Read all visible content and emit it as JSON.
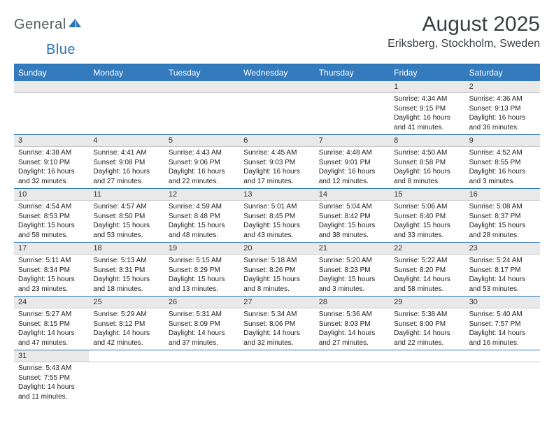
{
  "logo": {
    "text1": "General",
    "text2": "Blue"
  },
  "title": "August 2025",
  "location": "Eriksberg, Stockholm, Sweden",
  "day_names": [
    "Sunday",
    "Monday",
    "Tuesday",
    "Wednesday",
    "Thursday",
    "Friday",
    "Saturday"
  ],
  "colors": {
    "header_bg": "#347bbd",
    "header_border": "#2c76b8",
    "daynum_bg": "#e9e9e9",
    "text_dark": "#3a3f44"
  },
  "weeks": [
    [
      null,
      null,
      null,
      null,
      null,
      {
        "n": "1",
        "sr": "4:34 AM",
        "ss": "9:15 PM",
        "dl": "16 hours and 41 minutes."
      },
      {
        "n": "2",
        "sr": "4:36 AM",
        "ss": "9:13 PM",
        "dl": "16 hours and 36 minutes."
      }
    ],
    [
      {
        "n": "3",
        "sr": "4:38 AM",
        "ss": "9:10 PM",
        "dl": "16 hours and 32 minutes."
      },
      {
        "n": "4",
        "sr": "4:41 AM",
        "ss": "9:08 PM",
        "dl": "16 hours and 27 minutes."
      },
      {
        "n": "5",
        "sr": "4:43 AM",
        "ss": "9:06 PM",
        "dl": "16 hours and 22 minutes."
      },
      {
        "n": "6",
        "sr": "4:45 AM",
        "ss": "9:03 PM",
        "dl": "16 hours and 17 minutes."
      },
      {
        "n": "7",
        "sr": "4:48 AM",
        "ss": "9:01 PM",
        "dl": "16 hours and 12 minutes."
      },
      {
        "n": "8",
        "sr": "4:50 AM",
        "ss": "8:58 PM",
        "dl": "16 hours and 8 minutes."
      },
      {
        "n": "9",
        "sr": "4:52 AM",
        "ss": "8:55 PM",
        "dl": "16 hours and 3 minutes."
      }
    ],
    [
      {
        "n": "10",
        "sr": "4:54 AM",
        "ss": "8:53 PM",
        "dl": "15 hours and 58 minutes."
      },
      {
        "n": "11",
        "sr": "4:57 AM",
        "ss": "8:50 PM",
        "dl": "15 hours and 53 minutes."
      },
      {
        "n": "12",
        "sr": "4:59 AM",
        "ss": "8:48 PM",
        "dl": "15 hours and 48 minutes."
      },
      {
        "n": "13",
        "sr": "5:01 AM",
        "ss": "8:45 PM",
        "dl": "15 hours and 43 minutes."
      },
      {
        "n": "14",
        "sr": "5:04 AM",
        "ss": "8:42 PM",
        "dl": "15 hours and 38 minutes."
      },
      {
        "n": "15",
        "sr": "5:06 AM",
        "ss": "8:40 PM",
        "dl": "15 hours and 33 minutes."
      },
      {
        "n": "16",
        "sr": "5:08 AM",
        "ss": "8:37 PM",
        "dl": "15 hours and 28 minutes."
      }
    ],
    [
      {
        "n": "17",
        "sr": "5:11 AM",
        "ss": "8:34 PM",
        "dl": "15 hours and 23 minutes."
      },
      {
        "n": "18",
        "sr": "5:13 AM",
        "ss": "8:31 PM",
        "dl": "15 hours and 18 minutes."
      },
      {
        "n": "19",
        "sr": "5:15 AM",
        "ss": "8:29 PM",
        "dl": "15 hours and 13 minutes."
      },
      {
        "n": "20",
        "sr": "5:18 AM",
        "ss": "8:26 PM",
        "dl": "15 hours and 8 minutes."
      },
      {
        "n": "21",
        "sr": "5:20 AM",
        "ss": "8:23 PM",
        "dl": "15 hours and 3 minutes."
      },
      {
        "n": "22",
        "sr": "5:22 AM",
        "ss": "8:20 PM",
        "dl": "14 hours and 58 minutes."
      },
      {
        "n": "23",
        "sr": "5:24 AM",
        "ss": "8:17 PM",
        "dl": "14 hours and 53 minutes."
      }
    ],
    [
      {
        "n": "24",
        "sr": "5:27 AM",
        "ss": "8:15 PM",
        "dl": "14 hours and 47 minutes."
      },
      {
        "n": "25",
        "sr": "5:29 AM",
        "ss": "8:12 PM",
        "dl": "14 hours and 42 minutes."
      },
      {
        "n": "26",
        "sr": "5:31 AM",
        "ss": "8:09 PM",
        "dl": "14 hours and 37 minutes."
      },
      {
        "n": "27",
        "sr": "5:34 AM",
        "ss": "8:06 PM",
        "dl": "14 hours and 32 minutes."
      },
      {
        "n": "28",
        "sr": "5:36 AM",
        "ss": "8:03 PM",
        "dl": "14 hours and 27 minutes."
      },
      {
        "n": "29",
        "sr": "5:38 AM",
        "ss": "8:00 PM",
        "dl": "14 hours and 22 minutes."
      },
      {
        "n": "30",
        "sr": "5:40 AM",
        "ss": "7:57 PM",
        "dl": "14 hours and 16 minutes."
      }
    ],
    [
      {
        "n": "31",
        "sr": "5:43 AM",
        "ss": "7:55 PM",
        "dl": "14 hours and 11 minutes."
      },
      null,
      null,
      null,
      null,
      null,
      null
    ]
  ],
  "labels": {
    "sunrise": "Sunrise:",
    "sunset": "Sunset:",
    "daylight": "Daylight:"
  }
}
